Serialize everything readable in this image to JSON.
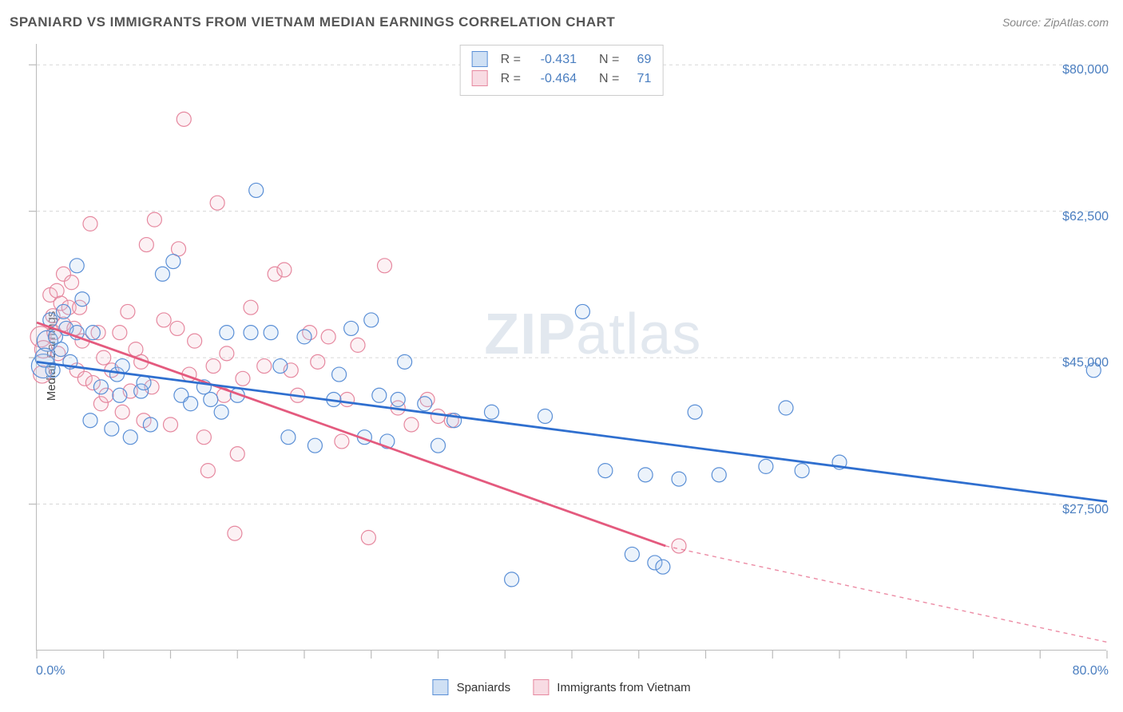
{
  "title": "SPANIARD VS IMMIGRANTS FROM VIETNAM MEDIAN EARNINGS CORRELATION CHART",
  "source_label": "Source: ZipAtlas.com",
  "ylabel": "Median Earnings",
  "watermark_bold": "ZIP",
  "watermark_light": "atlas",
  "chart": {
    "type": "scatter-with-regression",
    "background_color": "#ffffff",
    "grid_color": "#d7d7d7",
    "grid_dash": "4,4",
    "axis_color": "#bbbbbb",
    "tick_color": "#bbbbbb",
    "tick_length": 10,
    "xlim": [
      0,
      80
    ],
    "ylim": [
      10000,
      82500
    ],
    "x_label_min": "0.0%",
    "x_label_max": "80.0%",
    "x_ticks_at": [
      0,
      5,
      10,
      15,
      20,
      25,
      30,
      35,
      40,
      45,
      50,
      55,
      60,
      65,
      70,
      75,
      80
    ],
    "y_ticks": [
      {
        "v": 80000,
        "label": "$80,000"
      },
      {
        "v": 62500,
        "label": "$62,500"
      },
      {
        "v": 45000,
        "label": "$45,000"
      },
      {
        "v": 27500,
        "label": "$27,500"
      }
    ],
    "y_label_color": "#4a7ec0",
    "x_label_color": "#4a7ec0",
    "marker_radius": 9,
    "marker_stroke_width": 1.2,
    "marker_fill_opacity": 0.22,
    "line_width": 2.8
  },
  "series": {
    "blue": {
      "label": "Spaniards",
      "color_stroke": "#5a8fd6",
      "color_fill": "#a9c8ec",
      "line_color": "#2f6fcf",
      "R": "-0.431",
      "N": "69",
      "regression": {
        "x1": 0,
        "y1": 44500,
        "x2": 80,
        "y2": 27800,
        "dash_after_x": 80
      },
      "points": [
        {
          "x": 0.5,
          "y": 44000,
          "r": 15
        },
        {
          "x": 0.8,
          "y": 47000,
          "r": 13
        },
        {
          "x": 1.2,
          "y": 43500
        },
        {
          "x": 1.0,
          "y": 49500
        },
        {
          "x": 1.8,
          "y": 46000
        },
        {
          "x": 0.6,
          "y": 45000,
          "r": 12
        },
        {
          "x": 2.2,
          "y": 48500
        },
        {
          "x": 1.4,
          "y": 47500
        },
        {
          "x": 2.0,
          "y": 50500
        },
        {
          "x": 2.5,
          "y": 44500
        },
        {
          "x": 3.0,
          "y": 48000
        },
        {
          "x": 3.4,
          "y": 52000
        },
        {
          "x": 3.0,
          "y": 56000
        },
        {
          "x": 4.0,
          "y": 37500
        },
        {
          "x": 4.2,
          "y": 48000
        },
        {
          "x": 4.8,
          "y": 41500
        },
        {
          "x": 5.6,
          "y": 36500
        },
        {
          "x": 6.0,
          "y": 43000
        },
        {
          "x": 6.2,
          "y": 40500
        },
        {
          "x": 6.4,
          "y": 44000
        },
        {
          "x": 7.0,
          "y": 35500
        },
        {
          "x": 7.8,
          "y": 41000
        },
        {
          "x": 8.0,
          "y": 42000
        },
        {
          "x": 8.5,
          "y": 37000
        },
        {
          "x": 9.4,
          "y": 55000
        },
        {
          "x": 10.2,
          "y": 56500
        },
        {
          "x": 10.8,
          "y": 40500
        },
        {
          "x": 11.5,
          "y": 39500
        },
        {
          "x": 12.5,
          "y": 41500
        },
        {
          "x": 13.0,
          "y": 40000
        },
        {
          "x": 13.8,
          "y": 38500
        },
        {
          "x": 14.2,
          "y": 48000
        },
        {
          "x": 15.0,
          "y": 40500
        },
        {
          "x": 16.0,
          "y": 48000
        },
        {
          "x": 16.4,
          "y": 65000
        },
        {
          "x": 17.5,
          "y": 48000
        },
        {
          "x": 18.2,
          "y": 44000
        },
        {
          "x": 18.8,
          "y": 35500
        },
        {
          "x": 20.0,
          "y": 47500
        },
        {
          "x": 20.8,
          "y": 34500
        },
        {
          "x": 22.2,
          "y": 40000
        },
        {
          "x": 22.6,
          "y": 43000
        },
        {
          "x": 23.5,
          "y": 48500
        },
        {
          "x": 24.5,
          "y": 35500
        },
        {
          "x": 25.0,
          "y": 49500
        },
        {
          "x": 25.6,
          "y": 40500
        },
        {
          "x": 26.2,
          "y": 35000
        },
        {
          "x": 27.0,
          "y": 40000
        },
        {
          "x": 27.5,
          "y": 44500
        },
        {
          "x": 29.0,
          "y": 39500
        },
        {
          "x": 30.0,
          "y": 34500
        },
        {
          "x": 31.2,
          "y": 37500
        },
        {
          "x": 34.0,
          "y": 38500
        },
        {
          "x": 35.5,
          "y": 18500
        },
        {
          "x": 38.0,
          "y": 38000
        },
        {
          "x": 40.8,
          "y": 50500
        },
        {
          "x": 42.5,
          "y": 31500
        },
        {
          "x": 44.5,
          "y": 21500
        },
        {
          "x": 45.5,
          "y": 31000
        },
        {
          "x": 46.2,
          "y": 20500
        },
        {
          "x": 46.8,
          "y": 20000
        },
        {
          "x": 48.0,
          "y": 30500
        },
        {
          "x": 49.2,
          "y": 38500
        },
        {
          "x": 51.0,
          "y": 31000
        },
        {
          "x": 54.5,
          "y": 32000
        },
        {
          "x": 56.0,
          "y": 39000
        },
        {
          "x": 57.2,
          "y": 31500
        },
        {
          "x": 60.0,
          "y": 32500
        },
        {
          "x": 79.0,
          "y": 43500
        }
      ]
    },
    "pink": {
      "label": "Immigrants from Vietnam",
      "color_stroke": "#e6889f",
      "color_fill": "#f3c0ce",
      "line_color": "#e45a7e",
      "R": "-0.464",
      "N": "71",
      "regression": {
        "x1": 0,
        "y1": 49200,
        "x2": 47,
        "y2": 22500,
        "dash_after_x": 47,
        "dash_x2": 80,
        "dash_y2": 11000
      },
      "points": [
        {
          "x": 0.3,
          "y": 47500,
          "r": 13
        },
        {
          "x": 0.4,
          "y": 43000,
          "r": 11
        },
        {
          "x": 0.5,
          "y": 46000,
          "r": 11
        },
        {
          "x": 1.0,
          "y": 52500
        },
        {
          "x": 1.2,
          "y": 50000
        },
        {
          "x": 1.3,
          "y": 48000
        },
        {
          "x": 1.5,
          "y": 53000
        },
        {
          "x": 1.6,
          "y": 45500
        },
        {
          "x": 1.8,
          "y": 51500
        },
        {
          "x": 2.0,
          "y": 49000
        },
        {
          "x": 2.0,
          "y": 55000
        },
        {
          "x": 2.4,
          "y": 51000
        },
        {
          "x": 2.6,
          "y": 54000
        },
        {
          "x": 2.8,
          "y": 48500
        },
        {
          "x": 3.0,
          "y": 43500
        },
        {
          "x": 3.2,
          "y": 51000
        },
        {
          "x": 3.4,
          "y": 47000
        },
        {
          "x": 3.6,
          "y": 42500
        },
        {
          "x": 4.0,
          "y": 61000
        },
        {
          "x": 4.2,
          "y": 42000
        },
        {
          "x": 4.6,
          "y": 48000
        },
        {
          "x": 4.8,
          "y": 39500
        },
        {
          "x": 5.0,
          "y": 45000
        },
        {
          "x": 5.2,
          "y": 40500
        },
        {
          "x": 5.6,
          "y": 43500
        },
        {
          "x": 6.2,
          "y": 48000
        },
        {
          "x": 6.4,
          "y": 38500
        },
        {
          "x": 6.8,
          "y": 50500
        },
        {
          "x": 7.0,
          "y": 41000
        },
        {
          "x": 7.4,
          "y": 46000
        },
        {
          "x": 7.8,
          "y": 44500
        },
        {
          "x": 8.0,
          "y": 37500
        },
        {
          "x": 8.2,
          "y": 58500
        },
        {
          "x": 8.6,
          "y": 41500
        },
        {
          "x": 8.8,
          "y": 61500
        },
        {
          "x": 9.5,
          "y": 49500
        },
        {
          "x": 10.0,
          "y": 37000
        },
        {
          "x": 10.5,
          "y": 48500
        },
        {
          "x": 10.6,
          "y": 58000
        },
        {
          "x": 11.0,
          "y": 73500
        },
        {
          "x": 11.4,
          "y": 43000
        },
        {
          "x": 11.8,
          "y": 47000
        },
        {
          "x": 12.5,
          "y": 35500
        },
        {
          "x": 12.8,
          "y": 31500
        },
        {
          "x": 13.2,
          "y": 44000
        },
        {
          "x": 13.5,
          "y": 63500
        },
        {
          "x": 14.0,
          "y": 40500
        },
        {
          "x": 14.2,
          "y": 45500
        },
        {
          "x": 14.8,
          "y": 24000
        },
        {
          "x": 15.0,
          "y": 33500
        },
        {
          "x": 15.4,
          "y": 42500
        },
        {
          "x": 16.0,
          "y": 51000
        },
        {
          "x": 17.0,
          "y": 44000
        },
        {
          "x": 17.8,
          "y": 55000
        },
        {
          "x": 18.5,
          "y": 55500
        },
        {
          "x": 19.0,
          "y": 43500
        },
        {
          "x": 19.5,
          "y": 40500
        },
        {
          "x": 20.4,
          "y": 48000
        },
        {
          "x": 21.0,
          "y": 44500
        },
        {
          "x": 21.8,
          "y": 47500
        },
        {
          "x": 22.8,
          "y": 35000
        },
        {
          "x": 23.2,
          "y": 40000
        },
        {
          "x": 24.0,
          "y": 46500
        },
        {
          "x": 24.8,
          "y": 23500
        },
        {
          "x": 26.0,
          "y": 56000
        },
        {
          "x": 27.0,
          "y": 39000
        },
        {
          "x": 28.0,
          "y": 37000
        },
        {
          "x": 29.2,
          "y": 40000
        },
        {
          "x": 30.0,
          "y": 38000
        },
        {
          "x": 31.0,
          "y": 37500
        },
        {
          "x": 48.0,
          "y": 22500
        }
      ]
    }
  },
  "correlation_box": {
    "R_label": "R =",
    "N_label": "N ="
  }
}
